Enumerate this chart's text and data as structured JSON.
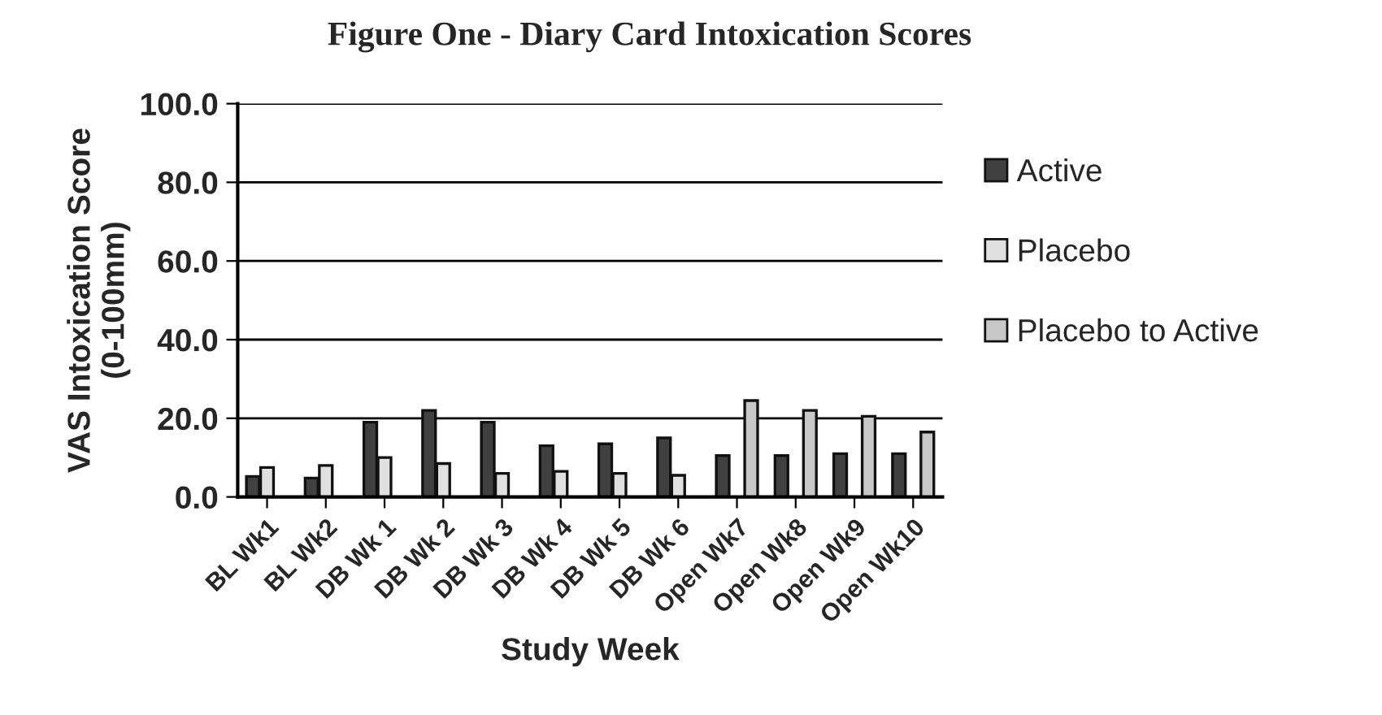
{
  "chart_data": {
    "type": "bar",
    "title": "Figure One - Diary Card Intoxication Scores",
    "xlabel": "Study Week",
    "ylabel": "VAS Intoxication Score\n(0-100mm)",
    "categories": [
      "BL Wk1",
      "BL Wk2",
      "DB Wk 1",
      "DB Wk 2",
      "DB Wk 3",
      "DB Wk 4",
      "DB Wk 5",
      "DB Wk 6",
      "Open Wk7",
      "Open Wk8",
      "Open Wk9",
      "Open Wk10"
    ],
    "series": [
      {
        "name": "Active",
        "color": "#404040",
        "values": [
          5.2,
          4.8,
          19,
          22,
          19,
          13,
          13.5,
          15,
          10.5,
          10.5,
          11,
          11
        ]
      },
      {
        "name": "Placebo",
        "color": "#e0e0e0",
        "values": [
          7.5,
          8,
          10,
          8.5,
          6,
          6.5,
          6,
          5.5,
          null,
          null,
          null,
          null
        ]
      },
      {
        "name": "Placebo to Active",
        "color": "#c8c8c8",
        "values": [
          null,
          null,
          null,
          null,
          null,
          null,
          null,
          null,
          24.5,
          22,
          20.5,
          16.5
        ]
      }
    ],
    "ylim": [
      0,
      100
    ],
    "yticks": [
      {
        "value": 0,
        "label": "0.0"
      },
      {
        "value": 20,
        "label": "20.0"
      },
      {
        "value": 40,
        "label": "40.0"
      },
      {
        "value": 60,
        "label": "60.0"
      },
      {
        "value": 80,
        "label": "80.0"
      },
      {
        "value": 100,
        "label": "100.0"
      }
    ],
    "grid": "y",
    "legend": "right"
  }
}
